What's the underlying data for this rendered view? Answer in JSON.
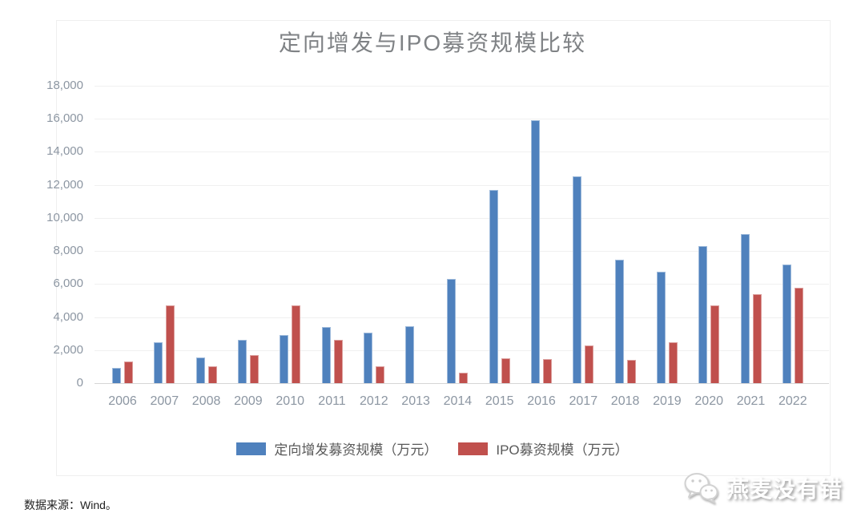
{
  "page": {
    "background": "#ffffff"
  },
  "chart_data": {
    "type": "bar",
    "title": "定向增发与IPO募资规模比较",
    "categories": [
      "2006",
      "2007",
      "2008",
      "2009",
      "2010",
      "2011",
      "2012",
      "2013",
      "2014",
      "2015",
      "2016",
      "2017",
      "2018",
      "2019",
      "2020",
      "2021",
      "2022"
    ],
    "series": [
      {
        "name": "定向增发募资规模（万元）",
        "color": "#4f81bd",
        "values": [
          900,
          2500,
          1550,
          2600,
          2900,
          3400,
          3050,
          3450,
          6300,
          11700,
          15900,
          12500,
          7450,
          6750,
          8300,
          9050,
          7200
        ]
      },
      {
        "name": "IPO募资规模（万元）",
        "color": "#c0504d",
        "values": [
          1300,
          4700,
          1000,
          1700,
          4700,
          2600,
          1000,
          0,
          650,
          1500,
          1450,
          2300,
          1400,
          2500,
          4700,
          5400,
          5800
        ]
      }
    ],
    "ylim": [
      0,
      18000
    ],
    "ytick_step": 2000,
    "ytick_labels": [
      "0",
      "2,000",
      "4,000",
      "6,000",
      "8,000",
      "10,000",
      "12,000",
      "14,000",
      "16,000",
      "18,000"
    ],
    "grid": true,
    "legend_position": "bottom"
  },
  "footer": {
    "source_text": "数据来源：Wind。"
  },
  "watermark": {
    "text": "燕麦没有错",
    "icon": "wechat-icon"
  }
}
